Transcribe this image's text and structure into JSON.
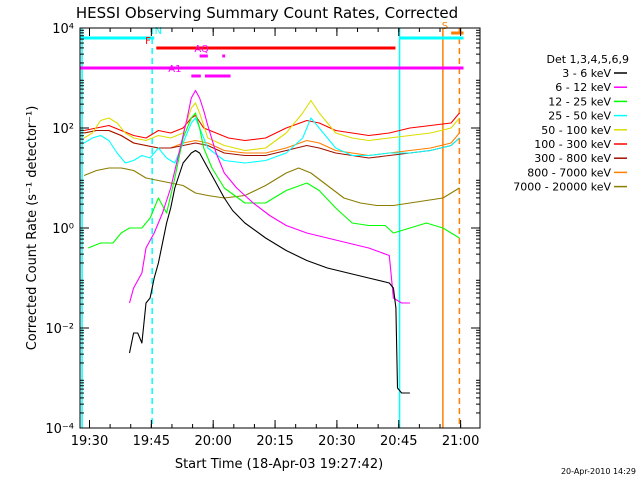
{
  "chart_data": {
    "type": "line",
    "title": "HESSI Observing Summary Count Rates, Corrected",
    "xlabel": "Start Time (18-Apr-03 19:27:42)",
    "ylabel": "Corrected Count Rate (s⁻¹ detector⁻¹)",
    "x_ticks": [
      "19:30",
      "19:45",
      "20:00",
      "20:15",
      "20:30",
      "20:45",
      "21:00"
    ],
    "x_ticks_min": [
      2.3,
      17.3,
      32.3,
      47.3,
      62.3,
      77.3,
      92.3
    ],
    "xlim_min": [
      0,
      97
    ],
    "y_ticks": [
      "10⁻⁴",
      "10⁻²",
      "10⁰",
      "10²",
      "10⁴"
    ],
    "y_ticks_log": [
      -4,
      -2,
      0,
      2,
      4
    ],
    "ylim_log": [
      -4,
      4
    ],
    "yscale": "log",
    "legend_title": "Det 1,3,4,5,6,9",
    "legend_position": "right",
    "footer_timestamp": "20-Apr-2010 14:29",
    "series": [
      {
        "name": "3 - 6 keV",
        "color": "#000000",
        "points": [
          [
            12,
            -2.5
          ],
          [
            13,
            -2.1
          ],
          [
            14,
            -2.1
          ],
          [
            15,
            -2.3
          ],
          [
            16,
            -1.5
          ],
          [
            17,
            -1.4
          ],
          [
            18,
            -1.0
          ],
          [
            19,
            -0.7
          ],
          [
            20,
            -0.3
          ],
          [
            21,
            0.1
          ],
          [
            22,
            0.4
          ],
          [
            23,
            0.8
          ],
          [
            25,
            1.3
          ],
          [
            27,
            1.5
          ],
          [
            28,
            1.55
          ],
          [
            29,
            1.5
          ],
          [
            30,
            1.35
          ],
          [
            31,
            1.2
          ],
          [
            33,
            0.9
          ],
          [
            35,
            0.6
          ],
          [
            37,
            0.35
          ],
          [
            40,
            0.1
          ],
          [
            45,
            -0.2
          ],
          [
            50,
            -0.45
          ],
          [
            55,
            -0.65
          ],
          [
            60,
            -0.8
          ],
          [
            65,
            -0.9
          ],
          [
            70,
            -1.0
          ],
          [
            75,
            -1.1
          ],
          [
            76,
            -1.2
          ],
          [
            76.6,
            -1.6
          ],
          [
            77,
            -3.2
          ],
          [
            78,
            -3.3
          ],
          [
            80,
            -3.3
          ]
        ]
      },
      {
        "name": "6 - 12 keV",
        "color": "#ff00ff",
        "points": [
          [
            12,
            -1.5
          ],
          [
            13,
            -1.2
          ],
          [
            15,
            -0.9
          ],
          [
            16,
            -0.4
          ],
          [
            18,
            -0.1
          ],
          [
            20,
            0.3
          ],
          [
            22,
            0.8
          ],
          [
            24,
            1.5
          ],
          [
            26,
            2.2
          ],
          [
            27,
            2.6
          ],
          [
            28,
            2.75
          ],
          [
            29,
            2.6
          ],
          [
            30,
            2.35
          ],
          [
            31,
            2.05
          ],
          [
            33,
            1.5
          ],
          [
            35,
            1.1
          ],
          [
            38,
            0.8
          ],
          [
            42,
            0.5
          ],
          [
            46,
            0.25
          ],
          [
            50,
            0.05
          ],
          [
            55,
            -0.1
          ],
          [
            60,
            -0.2
          ],
          [
            65,
            -0.3
          ],
          [
            70,
            -0.4
          ],
          [
            75,
            -0.55
          ],
          [
            76,
            -1.4
          ],
          [
            78,
            -1.5
          ],
          [
            80,
            -1.5
          ]
        ]
      },
      {
        "name": "12 - 25 keV",
        "color": "#00ff00",
        "points": [
          [
            2,
            -0.4
          ],
          [
            5,
            -0.3
          ],
          [
            8,
            -0.3
          ],
          [
            10,
            -0.1
          ],
          [
            12,
            0.0
          ],
          [
            15,
            0.0
          ],
          [
            17,
            0.2
          ],
          [
            19,
            0.6
          ],
          [
            21,
            0.3
          ],
          [
            23,
            1.0
          ],
          [
            25,
            1.8
          ],
          [
            27,
            2.2
          ],
          [
            28,
            2.3
          ],
          [
            29,
            2.0
          ],
          [
            30,
            1.6
          ],
          [
            32,
            1.2
          ],
          [
            35,
            0.8
          ],
          [
            40,
            0.5
          ],
          [
            45,
            0.5
          ],
          [
            50,
            0.75
          ],
          [
            55,
            0.9
          ],
          [
            58,
            0.75
          ],
          [
            62,
            0.4
          ],
          [
            66,
            0.1
          ],
          [
            70,
            0.05
          ],
          [
            74,
            0.05
          ],
          [
            76,
            -0.1
          ],
          [
            80,
            0.0
          ],
          [
            84,
            0.1
          ],
          [
            88,
            0.0
          ],
          [
            92,
            -0.2
          ]
        ]
      },
      {
        "name": "25 - 50 keV",
        "color": "#00ffff",
        "points": [
          [
            1,
            1.7
          ],
          [
            3,
            1.8
          ],
          [
            5,
            1.85
          ],
          [
            7,
            1.75
          ],
          [
            9,
            1.5
          ],
          [
            11,
            1.3
          ],
          [
            13,
            1.35
          ],
          [
            15,
            1.45
          ],
          [
            17,
            1.4
          ],
          [
            19,
            1.6
          ],
          [
            21,
            1.4
          ],
          [
            23,
            1.3
          ],
          [
            25,
            1.7
          ],
          [
            27,
            2.1
          ],
          [
            28,
            2.2
          ],
          [
            29,
            2.0
          ],
          [
            31,
            1.6
          ],
          [
            35,
            1.35
          ],
          [
            40,
            1.3
          ],
          [
            45,
            1.35
          ],
          [
            50,
            1.5
          ],
          [
            54,
            1.8
          ],
          [
            56,
            2.2
          ],
          [
            58,
            2.0
          ],
          [
            62,
            1.6
          ],
          [
            66,
            1.45
          ],
          [
            70,
            1.45
          ],
          [
            75,
            1.5
          ],
          [
            80,
            1.5
          ],
          [
            85,
            1.55
          ],
          [
            90,
            1.65
          ],
          [
            92,
            1.8
          ]
        ]
      },
      {
        "name": "50 - 100 keV",
        "color": "#dddd00",
        "points": [
          [
            1,
            1.8
          ],
          [
            3,
            1.9
          ],
          [
            5,
            2.15
          ],
          [
            7,
            2.2
          ],
          [
            9,
            2.1
          ],
          [
            11,
            1.9
          ],
          [
            13,
            1.8
          ],
          [
            16,
            1.75
          ],
          [
            19,
            1.85
          ],
          [
            22,
            1.8
          ],
          [
            25,
            1.9
          ],
          [
            27,
            2.4
          ],
          [
            28,
            2.5
          ],
          [
            29,
            2.3
          ],
          [
            31,
            1.8
          ],
          [
            35,
            1.65
          ],
          [
            40,
            1.55
          ],
          [
            45,
            1.6
          ],
          [
            50,
            1.9
          ],
          [
            54,
            2.3
          ],
          [
            56,
            2.55
          ],
          [
            58,
            2.3
          ],
          [
            62,
            1.9
          ],
          [
            66,
            1.8
          ],
          [
            70,
            1.75
          ],
          [
            75,
            1.8
          ],
          [
            80,
            1.85
          ],
          [
            85,
            1.9
          ],
          [
            90,
            2.0
          ],
          [
            92,
            2.2
          ]
        ]
      },
      {
        "name": "100 - 300 keV",
        "color": "#ff0000",
        "points": [
          [
            1,
            1.95
          ],
          [
            4,
            2.0
          ],
          [
            7,
            2.05
          ],
          [
            10,
            1.95
          ],
          [
            13,
            1.85
          ],
          [
            16,
            1.8
          ],
          [
            19,
            1.95
          ],
          [
            22,
            1.9
          ],
          [
            25,
            2.0
          ],
          [
            27,
            2.2
          ],
          [
            28,
            2.25
          ],
          [
            30,
            2.0
          ],
          [
            33,
            1.9
          ],
          [
            36,
            1.8
          ],
          [
            40,
            1.75
          ],
          [
            45,
            1.8
          ],
          [
            50,
            2.0
          ],
          [
            55,
            2.15
          ],
          [
            58,
            2.1
          ],
          [
            62,
            1.95
          ],
          [
            66,
            1.9
          ],
          [
            70,
            1.85
          ],
          [
            75,
            1.9
          ],
          [
            80,
            2.0
          ],
          [
            85,
            2.05
          ],
          [
            90,
            2.1
          ],
          [
            92,
            2.3
          ]
        ]
      },
      {
        "name": "300 - 800 keV",
        "color": "#a01000",
        "points": [
          [
            1,
            1.9
          ],
          [
            4,
            1.95
          ],
          [
            7,
            1.95
          ],
          [
            10,
            1.85
          ],
          [
            13,
            1.7
          ],
          [
            16,
            1.65
          ],
          [
            19,
            1.6
          ],
          [
            22,
            1.6
          ],
          [
            25,
            1.65
          ],
          [
            28,
            1.7
          ],
          [
            31,
            1.65
          ],
          [
            35,
            1.5
          ],
          [
            40,
            1.45
          ],
          [
            45,
            1.45
          ],
          [
            50,
            1.55
          ],
          [
            55,
            1.65
          ],
          [
            58,
            1.6
          ],
          [
            62,
            1.5
          ],
          [
            66,
            1.45
          ],
          [
            70,
            1.4
          ],
          [
            75,
            1.45
          ],
          [
            80,
            1.5
          ],
          [
            85,
            1.55
          ],
          [
            90,
            1.65
          ],
          [
            92,
            1.8
          ]
        ]
      },
      {
        "name": "800 - 7000 keV",
        "color": "#ff7f00",
        "points": [
          [
            1,
            1.9
          ],
          [
            4,
            1.95
          ],
          [
            7,
            1.95
          ],
          [
            10,
            1.85
          ],
          [
            13,
            1.7
          ],
          [
            16,
            1.65
          ],
          [
            19,
            1.6
          ],
          [
            22,
            1.6
          ],
          [
            25,
            1.7
          ],
          [
            28,
            1.75
          ],
          [
            31,
            1.7
          ],
          [
            35,
            1.55
          ],
          [
            40,
            1.5
          ],
          [
            45,
            1.5
          ],
          [
            50,
            1.6
          ],
          [
            55,
            1.75
          ],
          [
            58,
            1.7
          ],
          [
            62,
            1.55
          ],
          [
            66,
            1.5
          ],
          [
            70,
            1.45
          ],
          [
            75,
            1.5
          ],
          [
            80,
            1.55
          ],
          [
            85,
            1.6
          ],
          [
            90,
            1.7
          ],
          [
            92,
            1.9
          ]
        ]
      },
      {
        "name": "7000 - 20000 keV",
        "color": "#8b7d00",
        "points": [
          [
            1,
            1.05
          ],
          [
            4,
            1.15
          ],
          [
            7,
            1.2
          ],
          [
            10,
            1.2
          ],
          [
            13,
            1.15
          ],
          [
            16,
            1.0
          ],
          [
            19,
            0.95
          ],
          [
            22,
            0.9
          ],
          [
            25,
            0.85
          ],
          [
            28,
            0.7
          ],
          [
            31,
            0.65
          ],
          [
            35,
            0.6
          ],
          [
            40,
            0.65
          ],
          [
            45,
            0.85
          ],
          [
            50,
            1.1
          ],
          [
            53,
            1.2
          ],
          [
            56,
            1.1
          ],
          [
            60,
            0.85
          ],
          [
            64,
            0.6
          ],
          [
            68,
            0.5
          ],
          [
            72,
            0.45
          ],
          [
            76,
            0.45
          ],
          [
            80,
            0.5
          ],
          [
            84,
            0.55
          ],
          [
            88,
            0.6
          ],
          [
            92,
            0.8
          ]
        ]
      }
    ],
    "flag_bars": [
      {
        "label": "N",
        "color": "#00ffff",
        "segments": [
          [
            0,
            18
          ],
          [
            77.5,
            93
          ]
        ],
        "row": 3.8,
        "label_at": 19
      },
      {
        "label": "S",
        "color": "#ff7f00",
        "segments": [
          [
            90,
            93
          ]
        ],
        "row": 3.9,
        "label_at": 88.5
      },
      {
        "label": "F",
        "color": "#ff0000",
        "segments": [
          [
            18.5,
            76.5
          ]
        ],
        "row": 3.6,
        "label_at": 16.5
      },
      {
        "label": "AQ",
        "color": "#ff00ff",
        "segments": [
          [
            29,
            31
          ],
          [
            34.5,
            35.2
          ]
        ],
        "row": 3.44,
        "label_at": 29.5
      },
      {
        "label": "",
        "color": "#ff00ff",
        "segments": [
          [
            0,
            93
          ]
        ],
        "row": 3.2,
        "label_at": null
      },
      {
        "label": "A1",
        "color": "#ff00ff",
        "segments": [
          [
            27,
            29.3
          ],
          [
            30.3,
            36.5
          ]
        ],
        "row": 3.04,
        "label_at": 23
      }
    ],
    "vertical_markers": [
      {
        "x": 17.5,
        "color": "#00ffff",
        "style": "dashed"
      },
      {
        "x": 77.5,
        "color": "#00ffff",
        "style": "solid"
      },
      {
        "x": 88,
        "color": "#ff7f00",
        "style": "solid"
      },
      {
        "x": 92,
        "color": "#ff7f00",
        "style": "dashed"
      },
      {
        "x": 0.5,
        "color": "#00ffff",
        "style": "solid"
      }
    ]
  }
}
